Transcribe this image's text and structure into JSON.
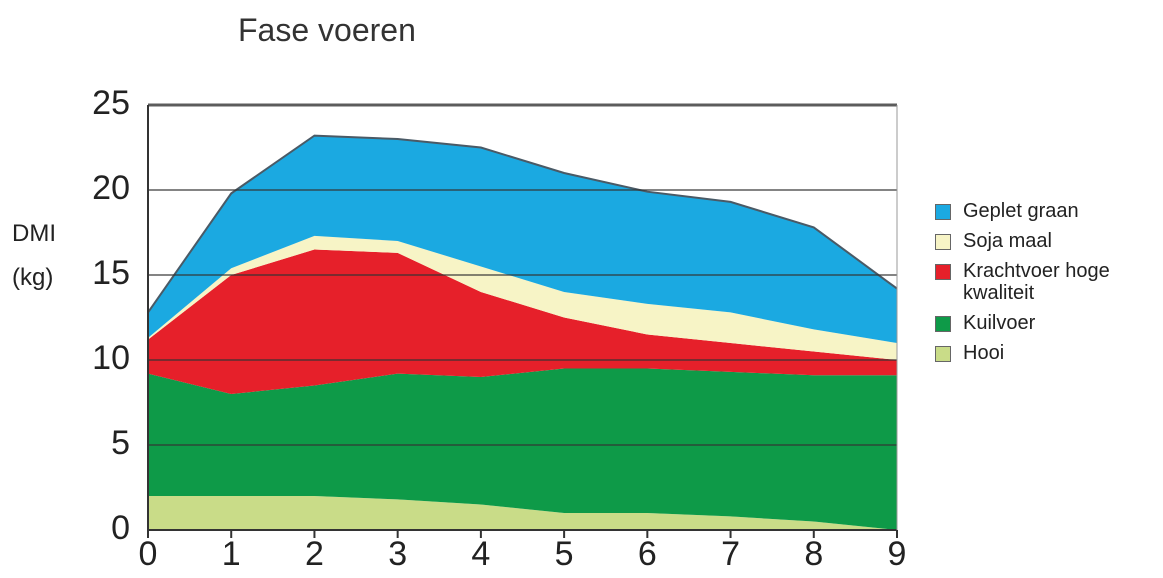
{
  "chart_data": {
    "type": "stacked_area",
    "title": "Fase voeren",
    "y_label": "DMI (kg)",
    "x": [
      0,
      1,
      2,
      3,
      4,
      5,
      6,
      7,
      8,
      9
    ],
    "xlim": [
      0,
      9
    ],
    "xticks": [
      0,
      1,
      2,
      3,
      4,
      5,
      6,
      7,
      8,
      9
    ],
    "ylim": [
      0,
      25
    ],
    "yticks": [
      0,
      5,
      10,
      15,
      20,
      25
    ],
    "grid": true,
    "legend": "right",
    "series": [
      {
        "name": "Geplet graan",
        "color": "#1ba9e1",
        "values": [
          1.5,
          4.4,
          5.9,
          6,
          7,
          7,
          6.6,
          6.5,
          6,
          3.2
        ]
      },
      {
        "name": "Soja maal",
        "color": "#f7f4c6",
        "values": [
          0.1,
          0.4,
          0.8,
          0.7,
          1.5,
          1.5,
          1.8,
          1.8,
          1.3,
          1
        ]
      },
      {
        "name": "Krachtvoer hoge kwaliteit",
        "color": "#e6202a",
        "values": [
          2,
          7,
          8,
          7.1,
          5,
          3,
          2,
          1.7,
          1.4,
          0.9
        ]
      },
      {
        "name": "Kuilvoer",
        "color": "#0e9a48",
        "values": [
          7.2,
          6,
          6.5,
          7.4,
          7.5,
          8.5,
          8.5,
          8.5,
          8.6,
          9.1
        ]
      },
      {
        "name": "Hooi",
        "color": "#c9dc88",
        "values": [
          2,
          2,
          2,
          1.8,
          1.5,
          1,
          1,
          0.8,
          0.5,
          0
        ]
      }
    ]
  }
}
